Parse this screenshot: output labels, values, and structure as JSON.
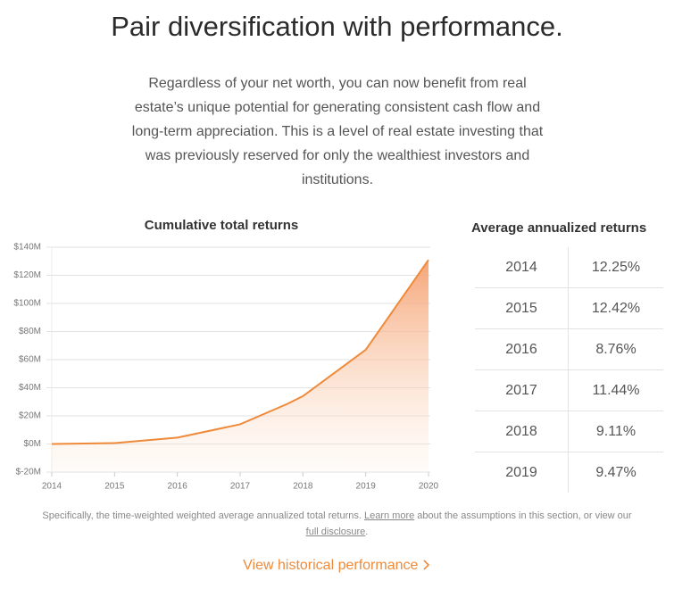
{
  "headline": "Pair diversification with performance.",
  "intro": "Regardless of your net worth, you can now benefit from real estate’s unique potential for generating consistent cash flow and long-term appreciation. This is a level of real estate investing that was previously reserved for only the wealthiest investors and institutions.",
  "chart_data": {
    "type": "area",
    "title": "Cumulative total returns",
    "x": [
      2014,
      2015,
      2016,
      2017,
      2017.75,
      2018,
      2019,
      2020
    ],
    "values": [
      0,
      0.6,
      4.5,
      14,
      28.5,
      34,
      67,
      131
    ],
    "color": "#ef8a3a",
    "xlim": [
      2014,
      2020
    ],
    "xticks": [
      2014,
      2015,
      2016,
      2017,
      2018,
      2019,
      2020
    ],
    "ylim": [
      -20,
      140
    ],
    "yticks": [
      {
        "value": -20,
        "label": "$-20M"
      },
      {
        "value": 0,
        "label": "$0M"
      },
      {
        "value": 20,
        "label": "$20M"
      },
      {
        "value": 40,
        "label": "$40M"
      },
      {
        "value": 60,
        "label": "$60M"
      },
      {
        "value": 80,
        "label": "$80M"
      },
      {
        "value": 100,
        "label": "$100M"
      },
      {
        "value": 120,
        "label": "$120M"
      },
      {
        "value": 140,
        "label": "$140M"
      }
    ],
    "grid": true
  },
  "table": {
    "title": "Average annualized returns",
    "rows": [
      [
        "2014",
        "12.25%"
      ],
      [
        "2015",
        "12.42%"
      ],
      [
        "2016",
        "8.76%"
      ],
      [
        "2017",
        "11.44%"
      ],
      [
        "2018",
        "9.11%"
      ],
      [
        "2019",
        "9.47%"
      ]
    ]
  },
  "disclosure": {
    "parts": [
      "Specifically, the time-weighted weighted average annualized total returns. ",
      "Learn more",
      " about the assumptions in this section, or view our ",
      "full disclosure",
      "."
    ]
  },
  "cta": "View historical performance"
}
